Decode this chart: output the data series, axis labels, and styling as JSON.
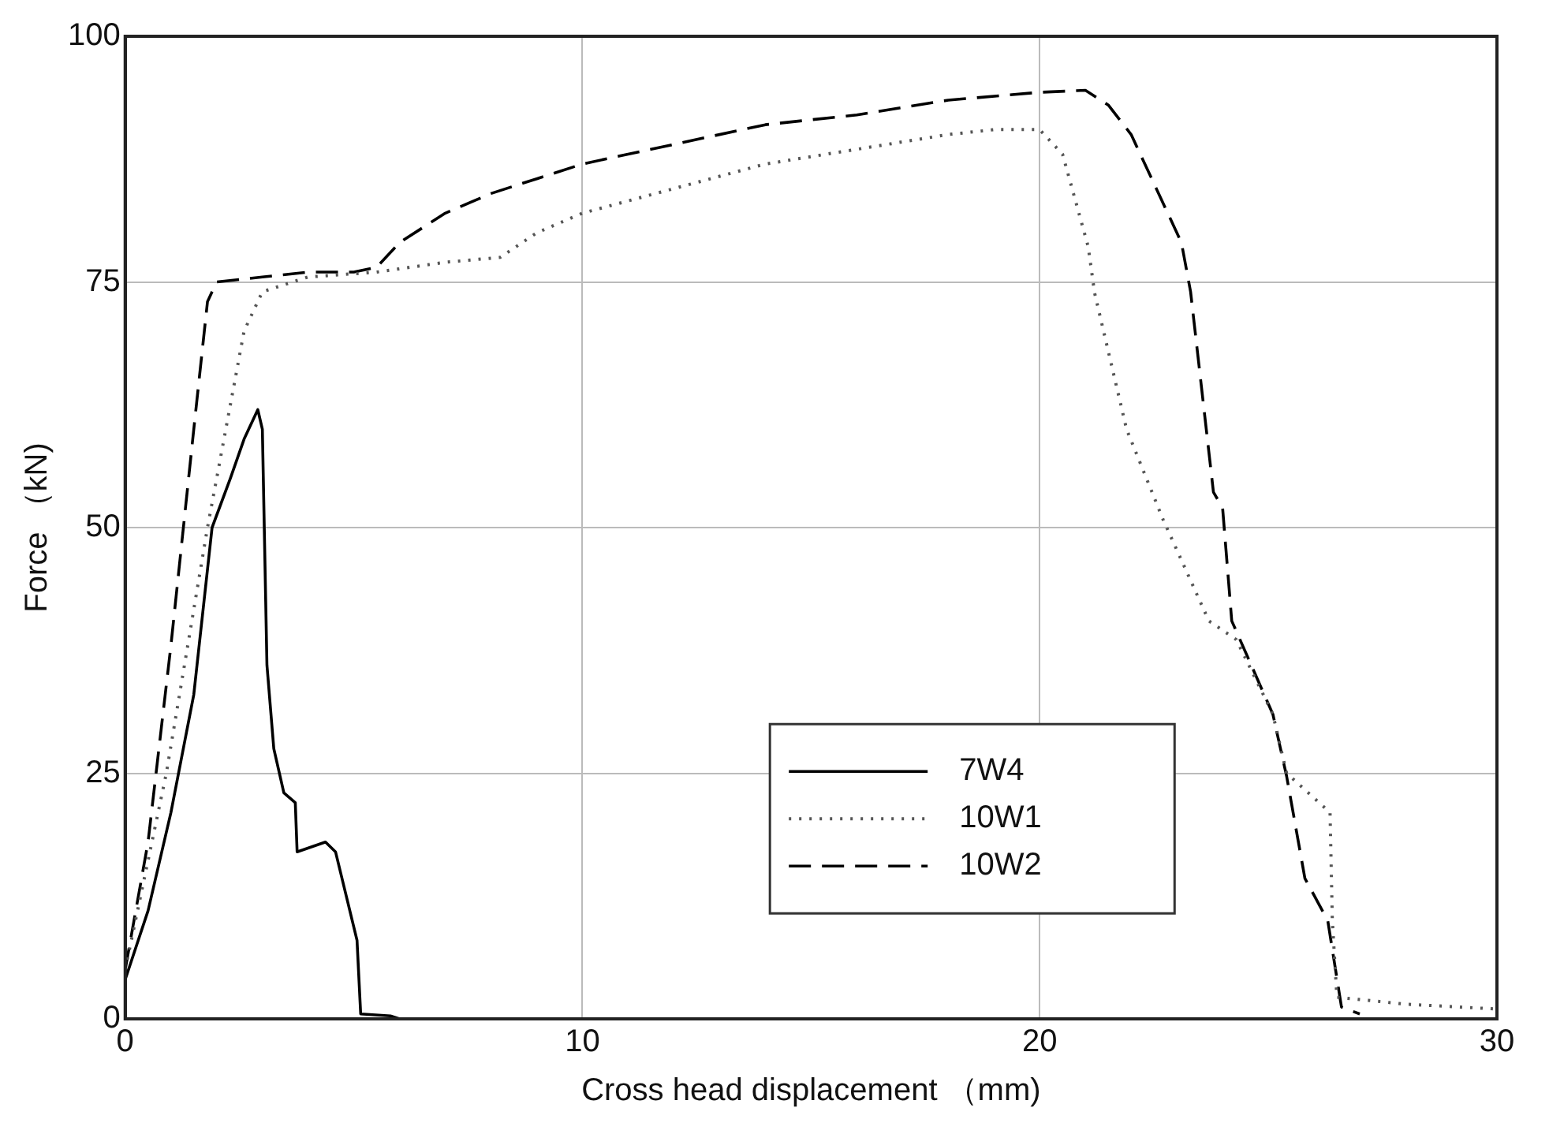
{
  "chart_data": {
    "type": "line",
    "xlabel": "Cross head displacement （mm)",
    "ylabel": "Force （kN)",
    "xlim": [
      0,
      30
    ],
    "ylim": [
      0,
      100
    ],
    "xticks": [
      0,
      10,
      20,
      30
    ],
    "yticks": [
      0,
      25,
      50,
      75,
      100
    ],
    "grid": true,
    "legend": "bottom right",
    "marker": "none",
    "series": [
      {
        "name": "7W4",
        "color": "#000000",
        "line_style": "solid",
        "x": [
          0,
          0.5,
          1,
          1.5,
          1.9,
          2.3,
          2.6,
          2.9,
          3.0,
          3.1,
          3.25,
          3.47,
          3.72,
          3.76,
          4.38,
          4.6,
          5.07,
          5.15,
          5.8,
          6
        ],
        "values": [
          4,
          11,
          21,
          33,
          50,
          55,
          59,
          62,
          60,
          36,
          27.5,
          23,
          22,
          17,
          18,
          17,
          8,
          0.5,
          0.3,
          0
        ]
      },
      {
        "name": "10W1",
        "color": "#555555",
        "line_style": "dotted",
        "x": [
          0,
          0.9,
          1.8,
          2.2,
          2.6,
          3.0,
          4,
          5.5,
          7,
          8.2,
          9,
          10,
          12,
          14,
          16,
          18,
          19,
          20,
          20.5,
          21.06,
          21.2,
          21.9,
          22.7,
          23.7,
          24.3,
          25.1,
          25.4,
          26.35,
          26.4,
          26.5,
          28,
          30
        ],
        "values": [
          5,
          25,
          50,
          60,
          70,
          74,
          75.5,
          76,
          77,
          77.5,
          80,
          82,
          84.5,
          87,
          88.5,
          90,
          90.5,
          90.5,
          88,
          78.6,
          73.9,
          60,
          50.8,
          40.5,
          38.6,
          31,
          25,
          21,
          10,
          2.2,
          1.5,
          1
        ]
      },
      {
        "name": "10W2",
        "color": "#000000",
        "line_style": "dashed",
        "x": [
          0,
          0.5,
          1,
          1.5,
          1.8,
          2,
          3,
          4,
          5,
          5.5,
          6,
          7,
          8,
          9,
          10,
          12,
          14,
          16,
          18,
          20,
          21,
          21.5,
          22,
          22.5,
          23.1,
          23.3,
          23.8,
          24.0,
          24.2,
          25.1,
          25.4,
          25.8,
          26.3,
          26.6,
          27
        ],
        "values": [
          5,
          18,
          38,
          60,
          73,
          75,
          75.5,
          76,
          76,
          76.5,
          79,
          82,
          84,
          85.5,
          87,
          89,
          91,
          92,
          93.5,
          94.3,
          94.5,
          93,
          90,
          85,
          79,
          74,
          53.6,
          52,
          40.5,
          31,
          24.7,
          14.3,
          10,
          1.2,
          0.5
        ]
      }
    ]
  }
}
